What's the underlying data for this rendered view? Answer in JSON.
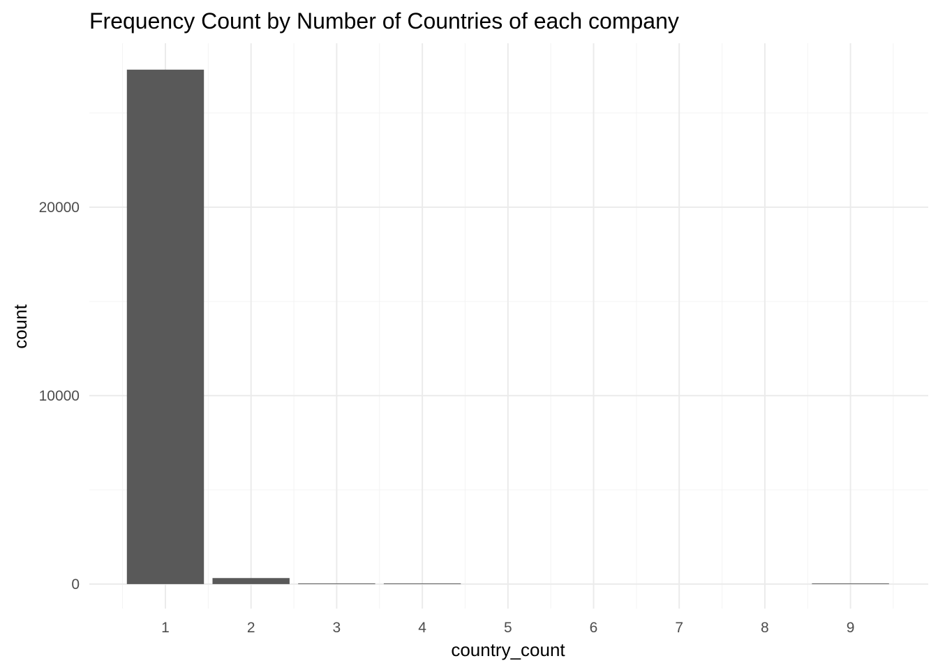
{
  "chart_data": {
    "type": "bar",
    "title": "Frequency Count by Number of Countries of each company",
    "xlabel": "country_count",
    "ylabel": "count",
    "categories": [
      "1",
      "2",
      "3",
      "4",
      "5",
      "6",
      "7",
      "8",
      "9"
    ],
    "values": [
      27300,
      320,
      20,
      15,
      0,
      0,
      0,
      0,
      10
    ],
    "ylim": [
      -1300,
      28700
    ],
    "yticks": [
      0,
      10000,
      20000
    ],
    "yticks_minor": [
      5000,
      15000,
      25000
    ],
    "ytick_labels": [
      "0",
      "10000",
      "20000"
    ],
    "grid": true,
    "bar_color": "#595959",
    "grid_major_color": "#ebebeb",
    "grid_minor_color": "#f3f3f3"
  }
}
